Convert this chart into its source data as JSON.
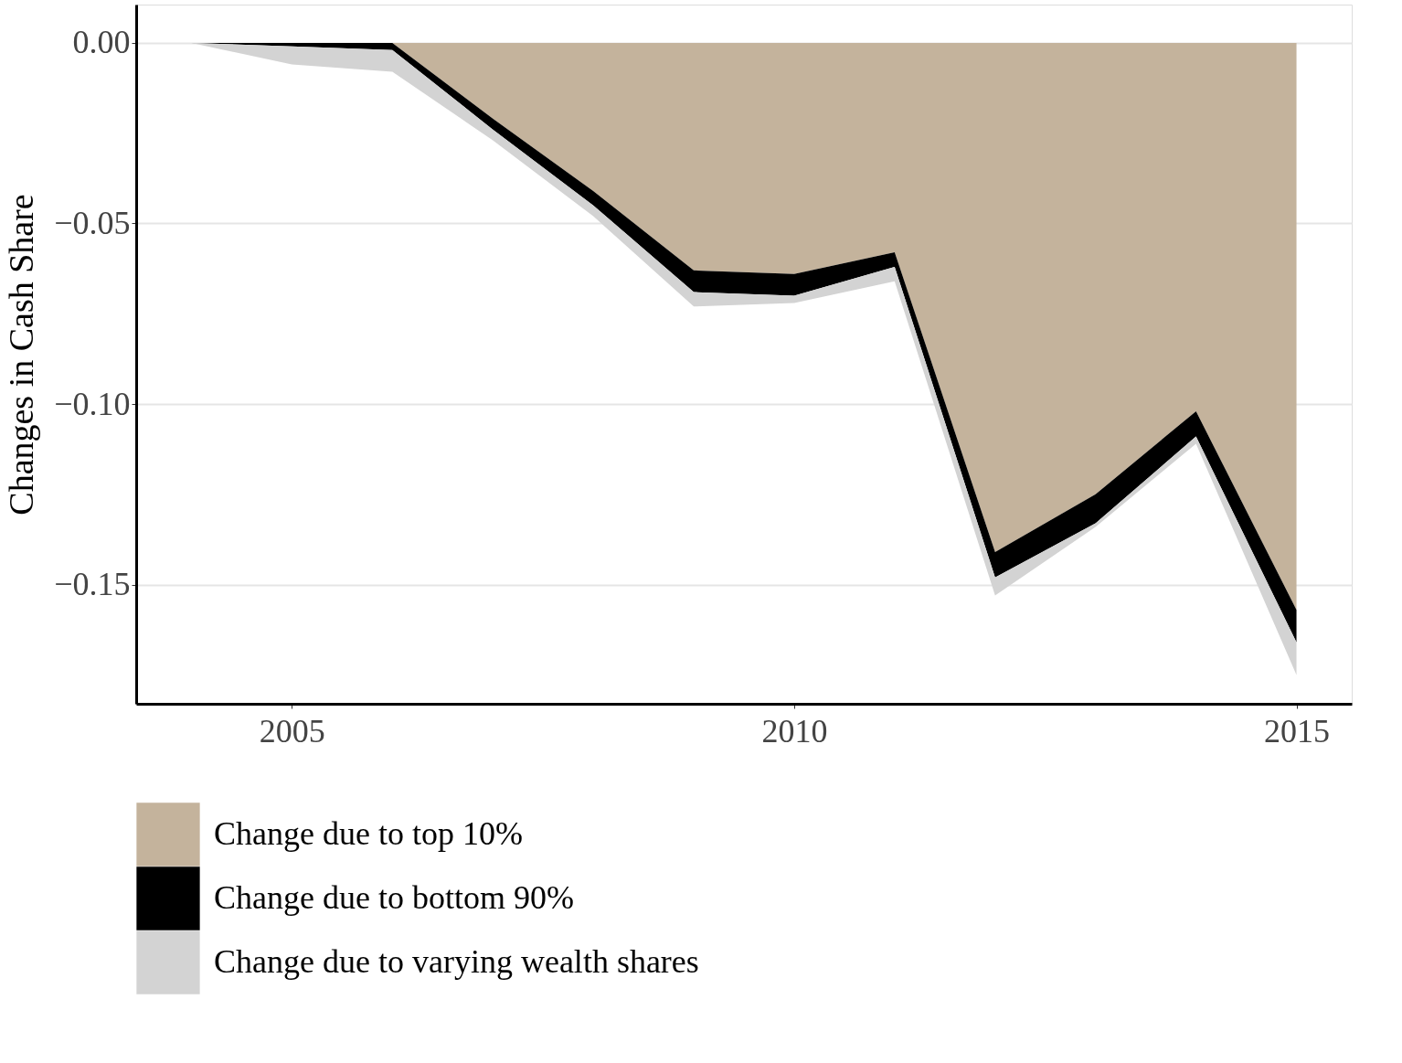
{
  "chart_data": {
    "type": "area",
    "stacked": true,
    "ylabel": "Changes in Cash Share",
    "x": [
      2004,
      2005,
      2006,
      2007,
      2008,
      2009,
      2010,
      2011,
      2012,
      2013,
      2014,
      2015
    ],
    "series": [
      {
        "name": "Change due to top 10%",
        "color": "#c4b39c",
        "values": [
          0,
          0,
          0,
          -0.021,
          -0.041,
          -0.063,
          -0.064,
          -0.058,
          -0.141,
          -0.125,
          -0.102,
          -0.157
        ]
      },
      {
        "name": "Change due to bottom 90%",
        "color": "#000000",
        "values": [
          0,
          -0.001,
          -0.002,
          -0.003,
          -0.004,
          -0.006,
          -0.006,
          -0.004,
          -0.007,
          -0.008,
          -0.007,
          -0.009
        ]
      },
      {
        "name": "Change due to varying wealth shares",
        "color": "#d3d3d3",
        "values": [
          0,
          -0.005,
          -0.006,
          -0.003,
          -0.003,
          -0.004,
          -0.002,
          -0.004,
          -0.005,
          -0.001,
          -0.002,
          -0.009
        ]
      }
    ],
    "xlim": [
      2003.45,
      2015.55
    ],
    "xticks": [
      2005,
      2010,
      2015
    ],
    "ylim": [
      -0.183,
      0.0106
    ],
    "yticks": [
      {
        "value": 0,
        "label": "0.00"
      },
      {
        "value": -0.05,
        "label": "−0.05"
      },
      {
        "value": -0.1,
        "label": "−0.10"
      },
      {
        "value": -0.15,
        "label": "−0.15"
      }
    ],
    "grid": "y",
    "legend": "bottom"
  }
}
